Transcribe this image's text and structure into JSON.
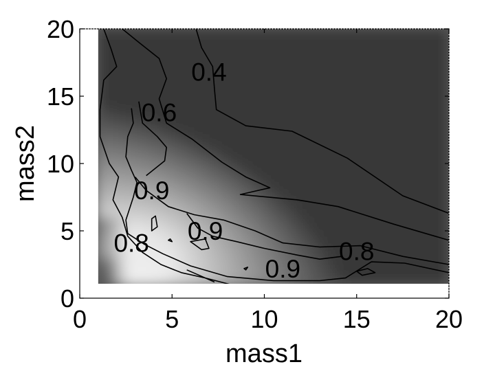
{
  "chart_data": {
    "type": "heatmap",
    "title": "",
    "xlabel": "mass1",
    "ylabel": "mass2",
    "xlim": [
      0,
      20
    ],
    "ylim": [
      0,
      20
    ],
    "xticks": [
      "0",
      "5",
      "10",
      "15",
      "20"
    ],
    "yticks": [
      "0",
      "5",
      "10",
      "15",
      "20"
    ],
    "data_extent": {
      "x": [
        1,
        20
      ],
      "y": [
        1,
        20
      ]
    },
    "colormap": "gray",
    "grid": false,
    "contour_levels": [
      0.4,
      0.6,
      0.8,
      0.9
    ],
    "contour_labels": [
      {
        "text": "0.4",
        "x": 7.0,
        "y": 16.8
      },
      {
        "text": "0.6",
        "x": 4.3,
        "y": 13.8
      },
      {
        "text": "0.9",
        "x": 3.9,
        "y": 8.0
      },
      {
        "text": "0.9",
        "x": 6.8,
        "y": 5.0
      },
      {
        "text": "0.8",
        "x": 2.8,
        "y": 4.1
      },
      {
        "text": "0.9",
        "x": 11.0,
        "y": 2.2
      },
      {
        "text": "0.8",
        "x": 15.0,
        "y": 3.5
      }
    ],
    "contours": [
      {
        "level": 0.4,
        "points": [
          [
            6.3,
            20
          ],
          [
            6.6,
            18.6
          ],
          [
            7.2,
            17.2
          ],
          [
            7.3,
            15.5
          ],
          [
            7.4,
            14
          ],
          [
            9.0,
            12.8
          ],
          [
            11.5,
            12.4
          ],
          [
            14.5,
            10.4
          ],
          [
            17.5,
            7.6
          ],
          [
            20,
            6.3
          ]
        ]
      },
      {
        "level": 0.6,
        "points": [
          [
            2.3,
            20
          ],
          [
            3.2,
            19
          ],
          [
            4.3,
            17.8
          ],
          [
            4.7,
            16.3
          ],
          [
            4.3,
            14.8
          ],
          [
            4.7,
            13
          ],
          [
            6.1,
            11.8
          ],
          [
            7.7,
            10.1
          ],
          [
            9.0,
            9.0
          ],
          [
            10.3,
            8.2
          ],
          [
            8.7,
            7.7
          ],
          [
            11.8,
            7.3
          ],
          [
            14.0,
            6.8
          ],
          [
            17.0,
            5.5
          ],
          [
            20,
            4.3
          ]
        ]
      },
      {
        "level": 0.8,
        "points": [
          [
            1.3,
            20
          ],
          [
            1.7,
            18.5
          ],
          [
            2.0,
            17.2
          ],
          [
            1.3,
            16.2
          ],
          [
            1.1,
            14
          ],
          [
            1.1,
            12
          ],
          [
            1.6,
            10
          ],
          [
            2.1,
            9
          ],
          [
            1.8,
            7.3
          ],
          [
            2.3,
            6
          ],
          [
            2.6,
            4.6
          ],
          [
            3.4,
            3.4
          ],
          [
            4.4,
            2.5
          ],
          [
            5.5,
            1.9
          ],
          [
            6.8,
            1.5
          ],
          [
            8.2,
            1
          ]
        ]
      },
      {
        "level": 0.8,
        "points": [
          [
            3.0,
            9.0
          ],
          [
            3.6,
            8.0
          ],
          [
            4.8,
            6.8
          ],
          [
            6.2,
            6.2
          ],
          [
            7.8,
            5.8
          ],
          [
            9.5,
            5.0
          ],
          [
            11,
            4.1
          ],
          [
            13.0,
            3.8
          ],
          [
            15.2,
            3.9
          ],
          [
            17.5,
            3.1
          ],
          [
            20,
            2.5
          ]
        ]
      },
      {
        "level": 0.9,
        "points": [
          [
            2.8,
            14.1
          ],
          [
            2.9,
            13
          ],
          [
            2.6,
            12
          ],
          [
            2.5,
            10.5
          ],
          [
            2.8,
            9.5
          ],
          [
            3.1,
            8.6
          ],
          [
            2.9,
            7.5
          ],
          [
            2.5,
            5.8
          ],
          [
            2.6,
            4.8
          ],
          [
            3.5,
            4.0
          ],
          [
            4.5,
            3.3
          ],
          [
            6.0,
            2.4
          ],
          [
            8.0,
            1.6
          ],
          [
            10.5,
            1.3
          ],
          [
            13,
            1.3
          ],
          [
            14.4,
            1.5
          ],
          [
            15.8,
            2.7
          ],
          [
            17.6,
            2.6
          ],
          [
            20,
            1.9
          ]
        ]
      },
      {
        "level": 0.9,
        "points": [
          [
            3.2,
            14.6
          ],
          [
            3.4,
            13
          ],
          [
            4.2,
            12
          ],
          [
            4.7,
            11.2
          ],
          [
            4.6,
            10.2
          ],
          [
            3.6,
            9.1
          ]
        ]
      },
      {
        "level": 0.9,
        "points": [
          [
            5.8,
            6.3
          ],
          [
            6.4,
            5.2
          ],
          [
            7.2,
            4.6
          ],
          [
            8.5,
            4.2
          ],
          [
            10,
            3.7
          ],
          [
            11.8,
            3.2
          ],
          [
            13,
            2.9
          ],
          [
            14.2,
            3.1
          ]
        ]
      },
      {
        "level": 0.8,
        "points": [
          [
            5.8,
            2.1
          ],
          [
            6.3,
            1.8
          ],
          [
            7.3,
            1.2
          ]
        ]
      },
      {
        "level": 0.9,
        "points": [
          [
            3.9,
            5.9
          ],
          [
            4.1,
            6.1
          ],
          [
            4.2,
            5.3
          ],
          [
            3.9,
            5.0
          ],
          [
            3.9,
            5.9
          ]
        ],
        "closed": true
      },
      {
        "level": 0.9,
        "points": [
          [
            6.0,
            4.2
          ],
          [
            6.8,
            4.4
          ],
          [
            7.0,
            3.7
          ],
          [
            6.6,
            3.6
          ],
          [
            6.0,
            4.2
          ]
        ],
        "closed": true
      },
      {
        "level": 0.9,
        "points": [
          [
            15.0,
            2.0
          ],
          [
            15.6,
            2.2
          ],
          [
            16.0,
            1.9
          ],
          [
            15.3,
            1.7
          ],
          [
            15.0,
            2.0
          ]
        ],
        "closed": true
      },
      {
        "level": 0.9,
        "points": [
          [
            8.9,
            2.2
          ],
          [
            9.1,
            2.3
          ],
          [
            9.0,
            2.1
          ],
          [
            8.9,
            2.2
          ]
        ],
        "closed": true
      },
      {
        "level": 0.9,
        "points": [
          [
            4.8,
            4.3
          ],
          [
            4.9,
            4.4
          ],
          [
            5.0,
            4.2
          ],
          [
            4.8,
            4.3
          ]
        ],
        "closed": true
      }
    ]
  }
}
